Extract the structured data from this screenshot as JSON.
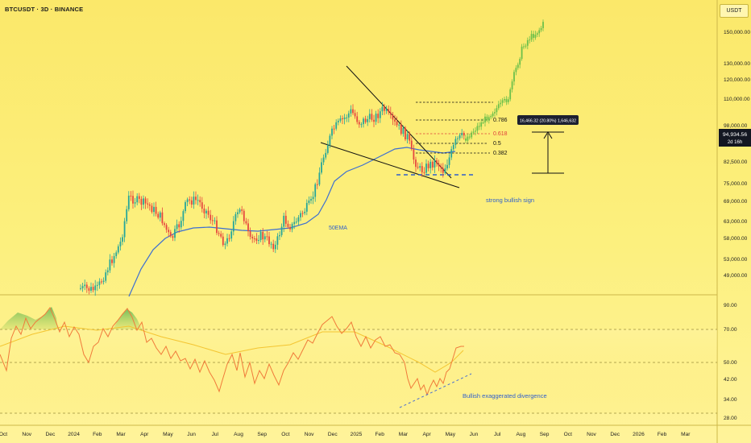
{
  "header": {
    "symbol": "BTCUSDT · 3D · BINANCE",
    "currency": "USDT"
  },
  "price_axis": {
    "labels": [
      "150,000.00",
      "130,000.00",
      "120,000.00",
      "110,000.00",
      "98,000.00",
      "82,500.00",
      "75,000.00",
      "69,000.00",
      "63,000.00",
      "58,000.00",
      "53,000.00",
      "49,000.00"
    ],
    "current_price": "94,934.56",
    "countdown": "2d 16h",
    "current_color": "#131722"
  },
  "rsi_axis": {
    "labels": [
      "90.00",
      "70.00",
      "50.00",
      "42.00",
      "34.00",
      "28.00"
    ]
  },
  "time_axis": {
    "labels": [
      "Oct",
      "Nov",
      "Dec",
      "2024",
      "Feb",
      "Mar",
      "Apr",
      "May",
      "Jun",
      "Jul",
      "Aug",
      "Sep",
      "Oct",
      "Nov",
      "Dec",
      "2025",
      "Feb",
      "Mar",
      "Apr",
      "May",
      "Jun",
      "Jul",
      "Aug",
      "Sep",
      "Oct",
      "Nov",
      "Dec",
      "2026",
      "Feb",
      "Mar"
    ]
  },
  "fib_levels": [
    {
      "label": "0.786",
      "color": "#111111"
    },
    {
      "label": "0.618",
      "color": "#e0403a"
    },
    {
      "label": "0.5",
      "color": "#111111"
    },
    {
      "label": "0.382",
      "color": "#111111"
    }
  ],
  "annotations": {
    "ema_label": "50EMA",
    "bullish_sign": "strong bullish sign",
    "divergence": "Bullish exaggerated divergence",
    "measure": "16,466.32 (20.80%) 1,646,632"
  },
  "colors": {
    "up": "#26a69a",
    "down": "#e5473f",
    "projection": "#6cc04a",
    "ema": "#3d6fd1",
    "rsi": "#f07a3a",
    "note": "#2f5fcc"
  }
}
